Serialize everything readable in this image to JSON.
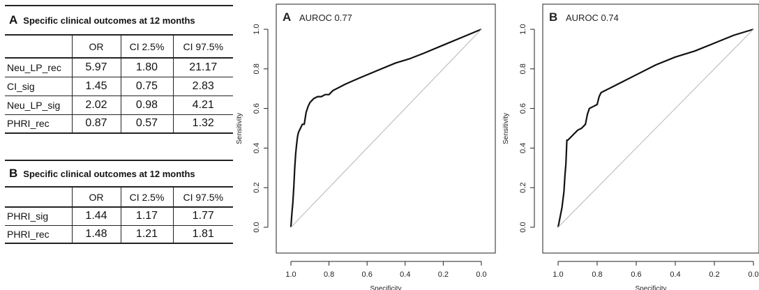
{
  "table_a": {
    "letter": "A",
    "title": "Specific clinical outcomes at 12 months",
    "columns": [
      "OR",
      "CI 2.5%",
      "CI 97.5%"
    ],
    "rows": [
      {
        "label": "Neu_LP_rec",
        "or": "5.97",
        "ci_low": "1.80",
        "ci_high": "21.17"
      },
      {
        "label": "CI_sig",
        "or": "1.45",
        "ci_low": "0.75",
        "ci_high": "2.83"
      },
      {
        "label": "Neu_LP_sig",
        "or": "2.02",
        "ci_low": "0.98",
        "ci_high": "4.21"
      },
      {
        "label": "PHRI_rec",
        "or": "0.87",
        "ci_low": "0.57",
        "ci_high": "1.32"
      }
    ]
  },
  "table_b": {
    "letter": "B",
    "title": "Specific clinical outcomes at 12 months",
    "columns": [
      "OR",
      "CI 2.5%",
      "CI 97.5%"
    ],
    "rows": [
      {
        "label": "PHRI_sig",
        "or": "1.44",
        "ci_low": "1.17",
        "ci_high": "1.77"
      },
      {
        "label": "PHRI_rec",
        "or": "1.48",
        "ci_low": "1.21",
        "ci_high": "1.81"
      }
    ]
  },
  "chart_data": [
    {
      "type": "line",
      "panel_letter": "A",
      "title": "AUROC 0.77",
      "xlabel": "Specificity",
      "ylabel": "Sensitivity",
      "xlim": [
        1.0,
        0.0
      ],
      "ylim": [
        0.0,
        1.0
      ],
      "x_ticks": [
        "1.0",
        "0.8",
        "0.6",
        "0.4",
        "0.2",
        "0.0"
      ],
      "y_ticks": [
        "0.0",
        "0.2",
        "0.4",
        "0.6",
        "0.8",
        "1.0"
      ],
      "grid": false,
      "series": [
        {
          "color": "#111111",
          "x": [
            1.0,
            0.995,
            0.99,
            0.985,
            0.98,
            0.975,
            0.97,
            0.965,
            0.96,
            0.95,
            0.94,
            0.93,
            0.92,
            0.91,
            0.9,
            0.89,
            0.88,
            0.86,
            0.84,
            0.82,
            0.8,
            0.78,
            0.76,
            0.74,
            0.72,
            0.65,
            0.55,
            0.45,
            0.38,
            0.3,
            0.2,
            0.1,
            0.0
          ],
          "y": [
            0.0,
            0.07,
            0.12,
            0.2,
            0.3,
            0.37,
            0.42,
            0.46,
            0.48,
            0.5,
            0.52,
            0.52,
            0.58,
            0.61,
            0.63,
            0.64,
            0.65,
            0.66,
            0.66,
            0.67,
            0.67,
            0.69,
            0.7,
            0.71,
            0.72,
            0.75,
            0.79,
            0.83,
            0.85,
            0.88,
            0.92,
            0.96,
            1.0
          ]
        },
        {
          "color": "#bbbbbb",
          "x": [
            1.0,
            0.0
          ],
          "y": [
            0.0,
            1.0
          ]
        }
      ]
    },
    {
      "type": "line",
      "panel_letter": "B",
      "title": "AUROC 0.74",
      "xlabel": "Specificity",
      "ylabel": "Sensitivity",
      "xlim": [
        1.0,
        0.0
      ],
      "ylim": [
        0.0,
        1.0
      ],
      "x_ticks": [
        "1.0",
        "0.8",
        "0.6",
        "0.4",
        "0.2",
        "0.0"
      ],
      "y_ticks": [
        "0.0",
        "0.2",
        "0.4",
        "0.6",
        "0.8",
        "1.0"
      ],
      "grid": false,
      "series": [
        {
          "color": "#111111",
          "x": [
            1.0,
            0.99,
            0.98,
            0.97,
            0.965,
            0.96,
            0.955,
            0.95,
            0.94,
            0.92,
            0.9,
            0.88,
            0.86,
            0.85,
            0.84,
            0.82,
            0.8,
            0.79,
            0.78,
            0.76,
            0.74,
            0.72,
            0.7,
            0.6,
            0.5,
            0.4,
            0.3,
            0.2,
            0.1,
            0.0
          ],
          "y": [
            0.0,
            0.05,
            0.1,
            0.18,
            0.26,
            0.32,
            0.44,
            0.44,
            0.45,
            0.47,
            0.49,
            0.5,
            0.52,
            0.57,
            0.6,
            0.61,
            0.62,
            0.66,
            0.68,
            0.69,
            0.7,
            0.71,
            0.72,
            0.77,
            0.82,
            0.86,
            0.89,
            0.93,
            0.97,
            1.0
          ]
        },
        {
          "color": "#bbbbbb",
          "x": [
            1.0,
            0.0
          ],
          "y": [
            0.0,
            1.0
          ]
        }
      ]
    }
  ]
}
